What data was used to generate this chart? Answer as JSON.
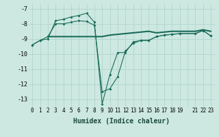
{
  "xlabel": "Humidex (Indice chaleur)",
  "background_color": "#cce8e0",
  "grid_color": "#b0d4cc",
  "line_color": "#1a6b5a",
  "xlim": [
    -0.5,
    23.5
  ],
  "ylim": [
    -13.5,
    -6.7
  ],
  "yticks": [
    -7,
    -8,
    -9,
    -10,
    -11,
    -12,
    -13
  ],
  "xtick_labels": [
    "0",
    "1",
    "2",
    "3",
    "4",
    "5",
    "6",
    "7",
    "8",
    "9",
    "10",
    "11",
    "12",
    "13",
    "14",
    "15",
    "16",
    "17",
    "18",
    "19",
    "",
    "21",
    "22",
    "23"
  ],
  "series1_x": [
    0,
    1,
    2,
    3,
    4,
    5,
    6,
    7,
    8,
    9,
    10,
    11,
    12,
    13,
    14,
    15,
    16,
    17,
    18,
    19,
    21,
    22,
    23
  ],
  "series1_y": [
    -9.4,
    -9.1,
    -9.0,
    -7.8,
    -7.7,
    -7.55,
    -7.45,
    -7.3,
    -7.9,
    -13.3,
    -11.35,
    -9.9,
    -9.9,
    -9.2,
    -9.1,
    -9.1,
    -8.85,
    -8.75,
    -8.7,
    -8.65,
    -8.65,
    -8.45,
    -8.8
  ],
  "series2_x": [
    2,
    3,
    4,
    5,
    6,
    7,
    8,
    9,
    10,
    11,
    12,
    13,
    14,
    15,
    16,
    17,
    18,
    19,
    21,
    22,
    23
  ],
  "series2_y": [
    -8.85,
    -8.85,
    -8.85,
    -8.85,
    -8.85,
    -8.85,
    -8.85,
    -8.85,
    -8.75,
    -8.7,
    -8.65,
    -8.6,
    -8.55,
    -8.5,
    -8.6,
    -8.55,
    -8.5,
    -8.5,
    -8.5,
    -8.4,
    -8.5
  ],
  "series3_x": [
    0,
    1,
    2,
    3,
    4,
    5,
    6,
    7,
    8,
    9,
    10,
    11,
    12,
    13,
    14,
    15,
    16,
    17,
    18,
    19,
    21,
    22,
    23
  ],
  "series3_y": [
    -9.4,
    -9.1,
    -8.85,
    -8.0,
    -8.0,
    -7.9,
    -7.8,
    -7.85,
    -8.1,
    -12.5,
    -12.3,
    -11.5,
    -9.8,
    -9.3,
    -9.1,
    -9.1,
    -8.85,
    -8.75,
    -8.7,
    -8.65,
    -8.65,
    -8.45,
    -8.8
  ]
}
